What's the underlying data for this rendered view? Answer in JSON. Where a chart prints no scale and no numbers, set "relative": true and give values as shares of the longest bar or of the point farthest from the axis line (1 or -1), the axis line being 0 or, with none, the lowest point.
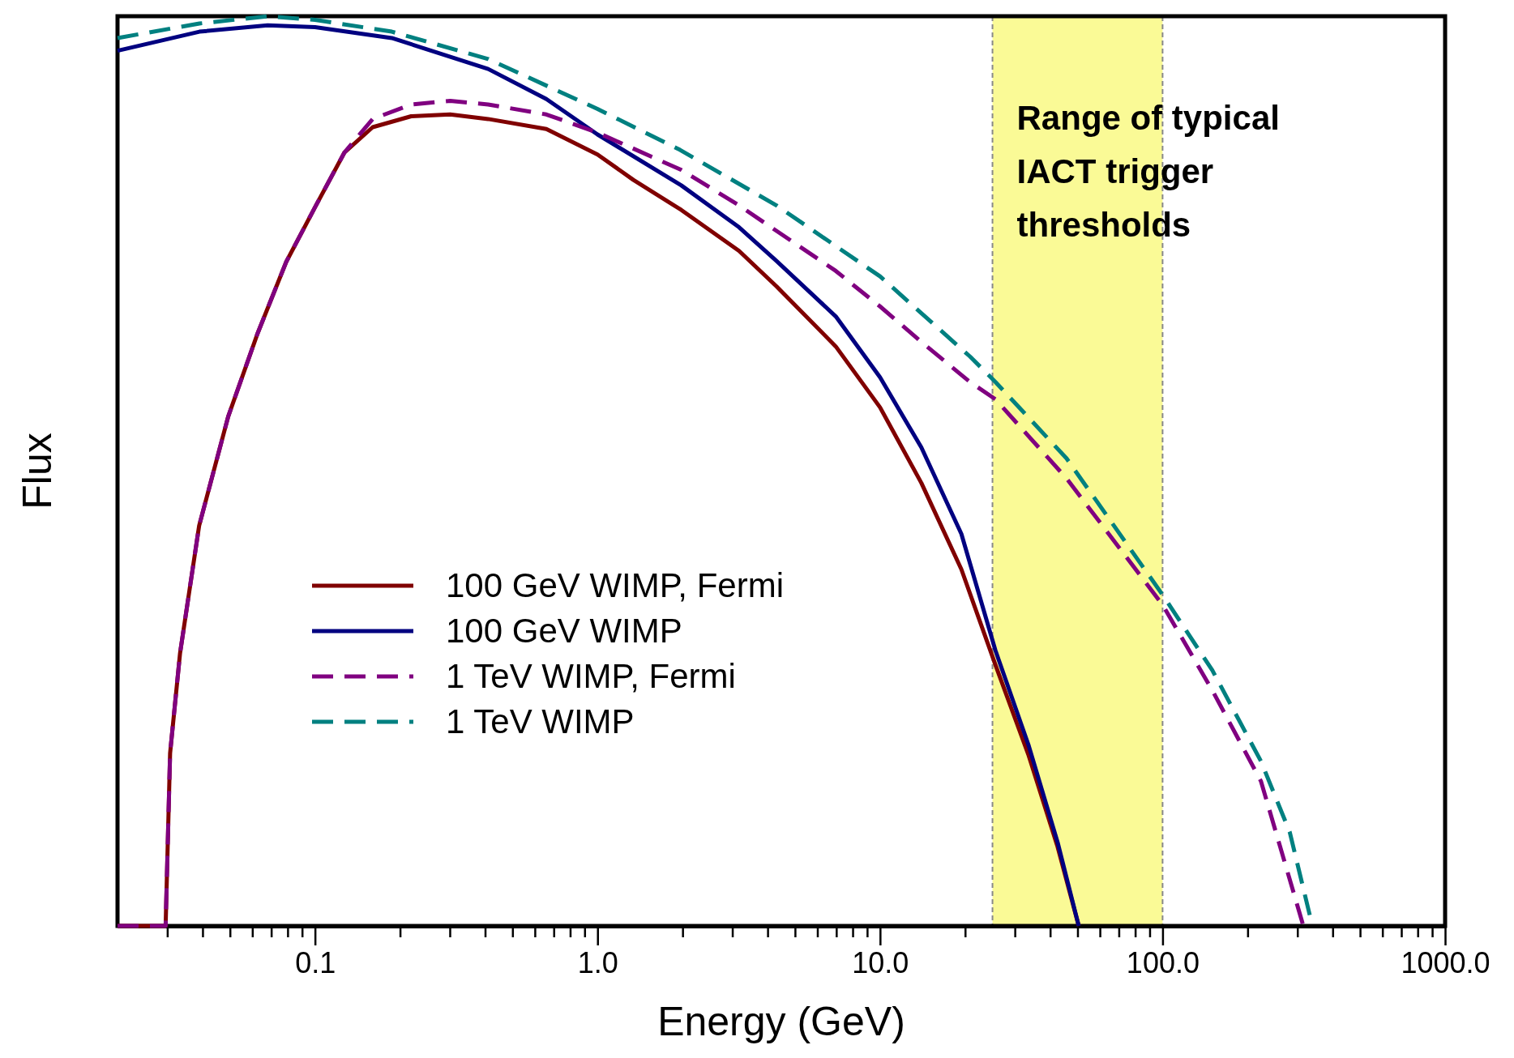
{
  "chart_data": {
    "type": "line",
    "xlabel": "Energy (GeV)",
    "ylabel": "Flux",
    "log": "x",
    "relative": true,
    "legend": "bottom left",
    "xlim": [
      0.02,
      1000
    ],
    "xticks": [
      {
        "value": 0.03,
        "label": null
      },
      {
        "value": 0.04,
        "label": null
      },
      {
        "value": 0.05,
        "label": null
      },
      {
        "value": 0.06,
        "label": null
      },
      {
        "value": 0.07,
        "label": null
      },
      {
        "value": 0.08,
        "label": null
      },
      {
        "value": 0.09,
        "label": null
      },
      {
        "value": 0.1,
        "label": "0.1"
      },
      {
        "value": 0.2,
        "label": null
      },
      {
        "value": 0.3,
        "label": null
      },
      {
        "value": 0.4,
        "label": null
      },
      {
        "value": 0.5,
        "label": null
      },
      {
        "value": 0.6,
        "label": null
      },
      {
        "value": 0.7,
        "label": null
      },
      {
        "value": 0.8,
        "label": null
      },
      {
        "value": 0.9,
        "label": null
      },
      {
        "value": 1,
        "label": "1.0"
      },
      {
        "value": 2,
        "label": null
      },
      {
        "value": 3,
        "label": null
      },
      {
        "value": 4,
        "label": null
      },
      {
        "value": 5,
        "label": null
      },
      {
        "value": 6,
        "label": null
      },
      {
        "value": 7,
        "label": null
      },
      {
        "value": 8,
        "label": null
      },
      {
        "value": 9,
        "label": null
      },
      {
        "value": 10,
        "label": "10.0"
      },
      {
        "value": 20,
        "label": null
      },
      {
        "value": 30,
        "label": null
      },
      {
        "value": 40,
        "label": null
      },
      {
        "value": 50,
        "label": null
      },
      {
        "value": 60,
        "label": null
      },
      {
        "value": 70,
        "label": null
      },
      {
        "value": 80,
        "label": null
      },
      {
        "value": 90,
        "label": null
      },
      {
        "value": 100,
        "label": "100.0"
      },
      {
        "value": 200,
        "label": null
      },
      {
        "value": 300,
        "label": null
      },
      {
        "value": 400,
        "label": null
      },
      {
        "value": 500,
        "label": null
      },
      {
        "value": 600,
        "label": null
      },
      {
        "value": 700,
        "label": null
      },
      {
        "value": 800,
        "label": null
      },
      {
        "value": 900,
        "label": null
      },
      {
        "value": 1000,
        "label": "1000.0"
      }
    ],
    "bands": [
      {
        "axis": "x",
        "from": 25,
        "to": 100,
        "label": "Range of typical IACT trigger thresholds",
        "color": "#fafa96"
      }
    ],
    "series": [
      {
        "name": "100 GeV WIMP, Fermi",
        "color": "#800000",
        "line_style": "solid",
        "x": [
          0.02,
          0.0296,
          0.0307,
          0.0333,
          0.0389,
          0.0493,
          0.0624,
          0.0791,
          0.1,
          0.127,
          0.16,
          0.219,
          0.301,
          0.41,
          0.659,
          1,
          1.34,
          1.98,
          3.17,
          4.3,
          6.97,
          10,
          14,
          19.4,
          25.6,
          33.6,
          42.5,
          50.5
        ],
        "values": [
          0,
          0,
          0.19,
          0.3,
          0.44,
          0.56,
          0.65,
          0.73,
          0.79,
          0.85,
          0.878,
          0.89,
          0.892,
          0.887,
          0.876,
          0.848,
          0.82,
          0.787,
          0.742,
          0.703,
          0.637,
          0.57,
          0.487,
          0.392,
          0.287,
          0.187,
          0.087,
          0
        ]
      },
      {
        "name": "100 GeV WIMP",
        "color": "#000080",
        "line_style": "solid",
        "x": [
          0.02,
          0.039,
          0.068,
          0.1,
          0.187,
          0.41,
          0.659,
          1,
          1.98,
          3.17,
          4.3,
          6.97,
          10,
          14,
          19.4,
          25.6,
          33.6,
          42.5,
          50.5
        ],
        "values": [
          0.962,
          0.983,
          0.99,
          0.988,
          0.976,
          0.942,
          0.909,
          0.87,
          0.814,
          0.768,
          0.731,
          0.67,
          0.603,
          0.526,
          0.431,
          0.303,
          0.198,
          0.092,
          0
        ]
      },
      {
        "name": "1 TeV WIMP, Fermi",
        "color": "#800080",
        "line_style": "dashed",
        "x": [
          0.02,
          0.0296,
          0.0307,
          0.0333,
          0.0389,
          0.0493,
          0.0624,
          0.0791,
          0.1,
          0.127,
          0.16,
          0.219,
          0.301,
          0.41,
          0.659,
          1,
          1.98,
          3.17,
          4.3,
          6.97,
          10,
          14,
          20.8,
          25.6,
          45.7,
          100,
          150,
          223,
          315
        ],
        "values": [
          0,
          0,
          0.19,
          0.3,
          0.44,
          0.56,
          0.65,
          0.73,
          0.79,
          0.85,
          0.887,
          0.903,
          0.907,
          0.903,
          0.892,
          0.872,
          0.831,
          0.792,
          0.764,
          0.72,
          0.681,
          0.642,
          0.598,
          0.579,
          0.492,
          0.353,
          0.259,
          0.159,
          0
        ]
      },
      {
        "name": "1 TeV WIMP",
        "color": "#008080",
        "line_style": "dashed",
        "x": [
          0.02,
          0.039,
          0.068,
          0.1,
          0.187,
          0.41,
          1,
          1.96,
          4.3,
          10,
          20.8,
          25.6,
          45.7,
          100,
          150,
          223,
          282,
          339
        ],
        "values": [
          0.976,
          0.992,
          1,
          0.996,
          0.983,
          0.953,
          0.898,
          0.853,
          0.792,
          0.714,
          0.626,
          0.598,
          0.514,
          0.364,
          0.281,
          0.181,
          0.103,
          0
        ]
      }
    ]
  }
}
